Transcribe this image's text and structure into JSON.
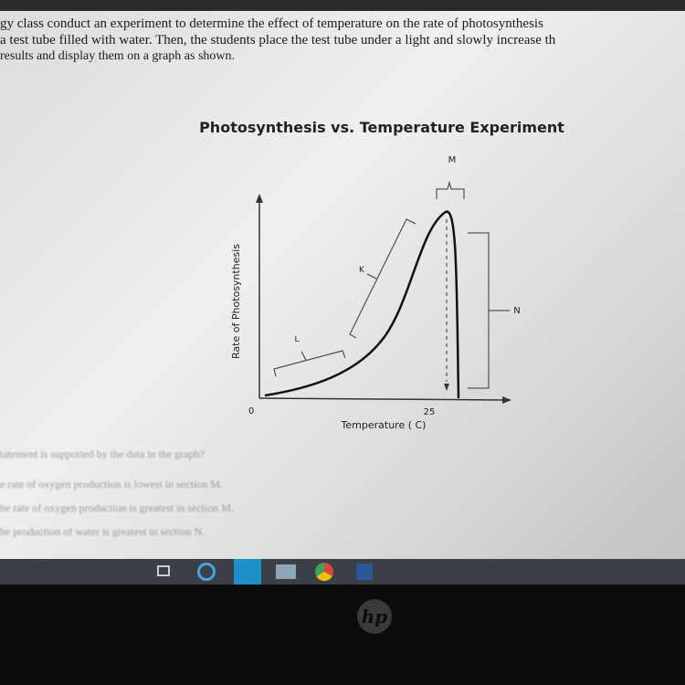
{
  "header": {
    "lines": [
      "gy class conduct an experiment to determine the effect of temperature on the rate of photosynthesis",
      "a test tube filled with water. Then, the students place the test tube under a light and slowly increase th",
      "results and display them on a graph as shown."
    ]
  },
  "diagram": {
    "title": "Photosynthesis vs. Temperature  Experiment",
    "y_label": "Rate of Photosynthesis",
    "x_label": "Temperature ( C)",
    "origin_label": "0",
    "x_mark_label": "25",
    "sections": [
      "K",
      "L",
      "M",
      "N"
    ]
  },
  "question": {
    "prompt": "tatement is supported by the data in the graph?",
    "options": [
      "e rate of oxygen production is lowest in section M.",
      "he rate of oxygen production is greatest in section M.",
      "he production of water is greatest in section N."
    ]
  },
  "bezel": {
    "logo": "hp"
  }
}
